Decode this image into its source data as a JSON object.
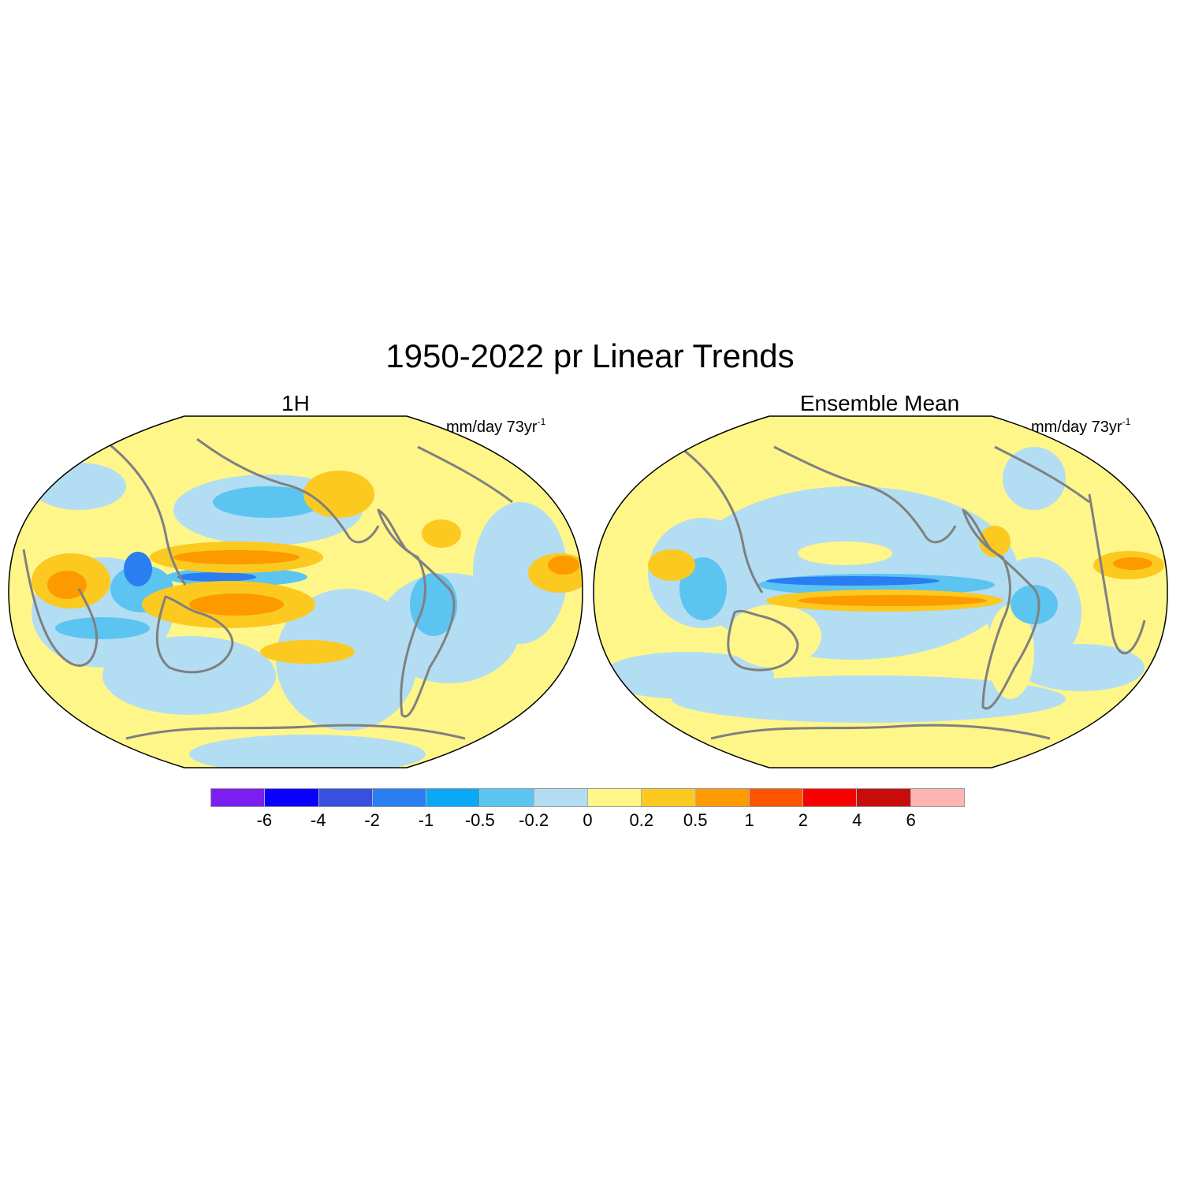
{
  "figure": {
    "title": "1950-2022 pr Linear Trends"
  },
  "panels": [
    {
      "title": "1H",
      "units_main": "mm/day 73yr",
      "units_exp": "-1"
    },
    {
      "title": "Ensemble Mean",
      "units_main": "mm/day 73yr",
      "units_exp": "-1"
    }
  ],
  "colorbar": {
    "colors": [
      "#7b1ff0",
      "#0a00ff",
      "#3750e0",
      "#2a7ef2",
      "#0aa8f5",
      "#5cc4f0",
      "#b3ddf2",
      "#fff68a",
      "#fcc920",
      "#fc9a00",
      "#ff5500",
      "#f60000",
      "#c80c0c",
      "#ffb4b4"
    ],
    "labels": [
      "-6",
      "-4",
      "-2",
      "-1",
      "-0.5",
      "-0.2",
      "0",
      "0.2",
      "0.5",
      "1",
      "2",
      "4",
      "6"
    ]
  },
  "map_colors": {
    "ocean_background": "#fff68a",
    "coastline": "#808080",
    "outline": "#000000"
  }
}
